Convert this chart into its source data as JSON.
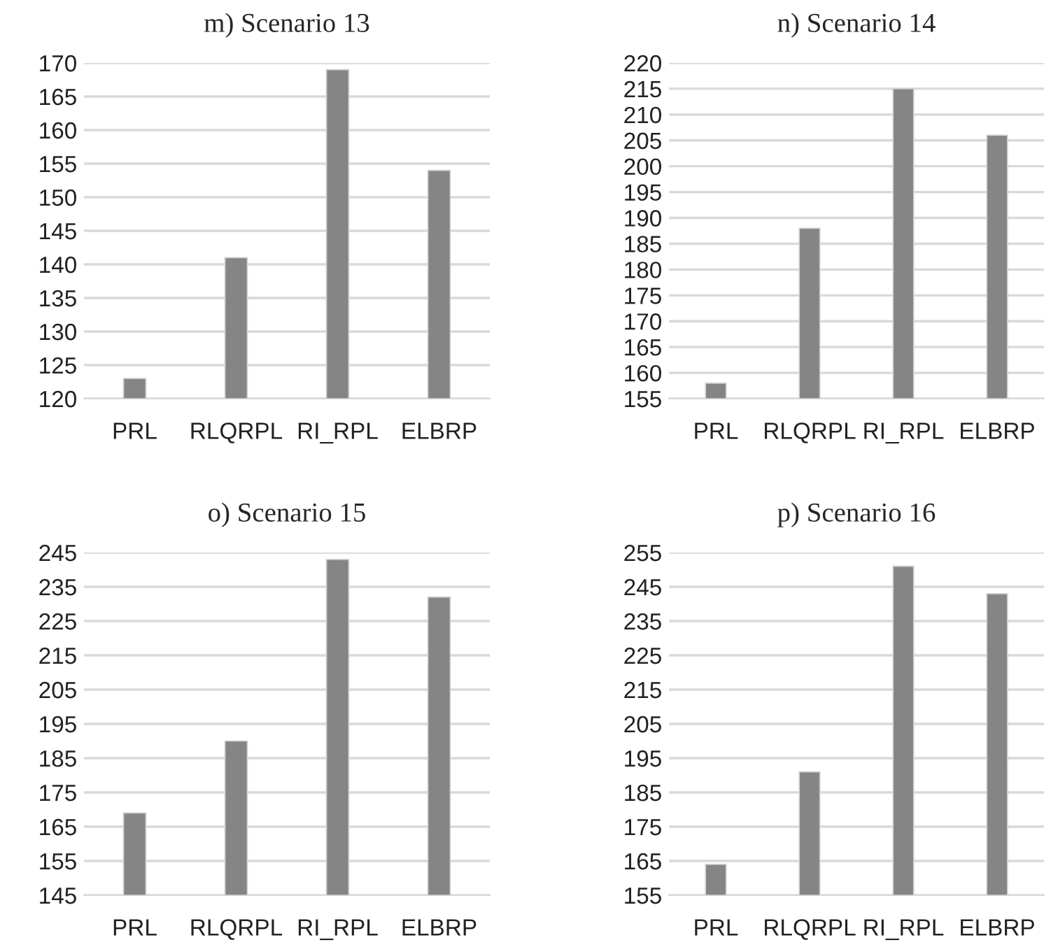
{
  "chart_data": [
    {
      "type": "bar",
      "title": "m) Scenario 13",
      "categories": [
        "PRL",
        "RLQRPL",
        "RI_RPL",
        "ELBRP"
      ],
      "values": [
        123,
        141,
        169,
        154
      ],
      "color": "#858585",
      "ylim": [
        120,
        170
      ],
      "yticks": [
        120,
        125,
        130,
        135,
        140,
        145,
        150,
        155,
        160,
        165,
        170
      ],
      "grid": "y"
    },
    {
      "type": "bar",
      "title": "n) Scenario 14",
      "categories": [
        "PRL",
        "RLQRPL",
        "RI_RPL",
        "ELBRP"
      ],
      "values": [
        158,
        188,
        215,
        206
      ],
      "color": "#858585",
      "ylim": [
        155,
        220
      ],
      "yticks": [
        155,
        160,
        165,
        170,
        175,
        180,
        185,
        190,
        195,
        200,
        205,
        210,
        215,
        220
      ],
      "grid": "y"
    },
    {
      "type": "bar",
      "title": "o) Scenario 15",
      "categories": [
        "PRL",
        "RLQRPL",
        "RI_RPL",
        "ELBRP"
      ],
      "values": [
        169,
        190,
        243,
        232
      ],
      "color": "#858585",
      "ylim": [
        145,
        245
      ],
      "yticks": [
        145,
        155,
        165,
        175,
        185,
        195,
        205,
        215,
        225,
        235,
        245
      ],
      "grid": "y"
    },
    {
      "type": "bar",
      "title": "p) Scenario 16",
      "categories": [
        "PRL",
        "RLQRPL",
        "RI_RPL",
        "ELBRP"
      ],
      "values": [
        164,
        191,
        251,
        243
      ],
      "color": "#858585",
      "ylim": [
        155,
        255
      ],
      "yticks": [
        155,
        165,
        175,
        185,
        195,
        205,
        215,
        225,
        235,
        245,
        255
      ],
      "grid": "y"
    }
  ]
}
